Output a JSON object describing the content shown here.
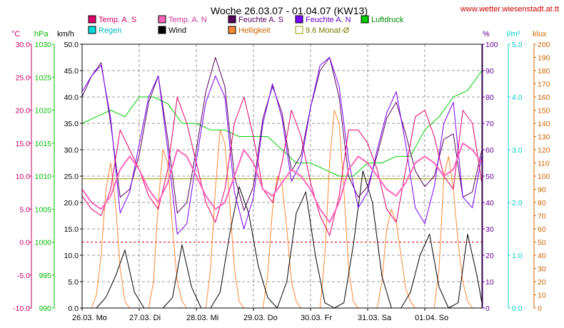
{
  "chart_data": {
    "type": "line",
    "title": "Woche 26.03.07 - 01.04.07 (KW13)",
    "site": "www.wetter.wiesenstadt.at.tt",
    "unit_labels": {
      "temp": "°C",
      "pressure": "hPa",
      "wind": "km/h",
      "humidity": "%",
      "rain": "l/m²",
      "light": "klux"
    },
    "axes": {
      "temp": {
        "range": [
          -10,
          30
        ],
        "ticks": [
          "-10.0",
          "-5.0",
          "0.0",
          "5.0",
          "10.0",
          "15.0",
          "20.0",
          "25.0",
          "30.0"
        ],
        "color": "#cc0066"
      },
      "pressure": {
        "range": [
          990,
          1030
        ],
        "ticks": [
          "990",
          "995",
          "1000",
          "1005",
          "1010",
          "1015",
          "1020",
          "1025",
          "1030"
        ],
        "color": "#00bb00"
      },
      "wind": {
        "range": [
          0,
          50
        ],
        "ticks": [
          "0.0",
          "5.0",
          "10.0",
          "15.0",
          "20.0",
          "25.0",
          "30.0",
          "35.0",
          "40.0",
          "45.0",
          "50.0"
        ],
        "color": "#000000"
      },
      "humidity": {
        "range": [
          0,
          100
        ],
        "ticks": [
          "0",
          "10",
          "20",
          "30",
          "40",
          "50",
          "60",
          "70",
          "80",
          "90",
          "100"
        ],
        "color": "#660099"
      },
      "rain": {
        "range": [
          0,
          5
        ],
        "ticks": [
          "0.0",
          "1.0",
          "2.0",
          "3.0",
          "4.0",
          "5.0"
        ],
        "color": "#00cccc"
      },
      "light": {
        "range": [
          0,
          200
        ],
        "ticks": [
          "0",
          "10",
          "20",
          "30",
          "40",
          "50",
          "60",
          "70",
          "80",
          "90",
          "100",
          "110",
          "120",
          "130",
          "140",
          "150",
          "160",
          "170",
          "180",
          "190",
          "200"
        ],
        "color": "#cc6600"
      }
    },
    "x_days": [
      "26.03. Mo",
      "27.03. Di",
      "28.03. Mi",
      "29.03. Do",
      "30.03. Fr",
      "31.03. Sa",
      "01.04. So"
    ],
    "x_unit": "hours since week start",
    "legend": [
      {
        "label": "Temp. A. S",
        "color": "#e0006a"
      },
      {
        "label": "Temp. A. N",
        "color": "#ff66bb"
      },
      {
        "label": "Feuchte A. S",
        "color": "#55005a"
      },
      {
        "label": "Feuchte A. N",
        "color": "#7700ff"
      },
      {
        "label": "Luftdruck",
        "color": "#00cc00"
      },
      {
        "label": "Regen",
        "color": "#00dddd"
      },
      {
        "label": "Wind",
        "color": "#000000"
      },
      {
        "label": "Helligkeit",
        "color": "#ff8833"
      },
      {
        "label": "9.6 Monat-Ø",
        "color": "#999900",
        "outline": true
      }
    ],
    "monthly_mean_temp": 9.6,
    "zero_line_temp": 0,
    "series": [
      {
        "name": "Temp. A. N",
        "axis": "temp",
        "color": "#ff66bb",
        "width": 2,
        "x": [
          0,
          4,
          8,
          12,
          16,
          20,
          24,
          28,
          32,
          36,
          40,
          44,
          48,
          52,
          56,
          60,
          64,
          68,
          72,
          76,
          80,
          84,
          88,
          92,
          96,
          100,
          104,
          108,
          112,
          116,
          120,
          124,
          128,
          132,
          136,
          140,
          144,
          148,
          152,
          156,
          160,
          164,
          168
        ],
        "y": [
          8,
          6,
          5,
          7,
          11,
          13,
          11,
          8,
          6,
          9,
          14,
          13,
          10,
          7,
          5,
          6,
          10,
          14,
          12,
          8,
          7,
          9,
          11,
          10,
          8,
          5,
          3,
          6,
          11,
          13,
          12,
          10,
          8,
          7,
          9,
          12,
          13,
          12,
          10,
          11,
          15,
          14,
          12
        ]
      },
      {
        "name": "Temp. A. S",
        "axis": "temp",
        "color": "#e0006a",
        "width": 1,
        "x": [
          0,
          4,
          8,
          12,
          16,
          20,
          24,
          28,
          32,
          36,
          40,
          44,
          48,
          52,
          56,
          60,
          64,
          68,
          72,
          76,
          80,
          84,
          88,
          92,
          96,
          100,
          104,
          108,
          112,
          116,
          120,
          124,
          128,
          132,
          136,
          140,
          144,
          148,
          152,
          156,
          160,
          164,
          168
        ],
        "y": [
          7,
          5,
          4,
          8,
          17,
          14,
          11,
          7,
          5,
          11,
          22,
          18,
          12,
          6,
          3,
          8,
          18,
          22,
          16,
          8,
          6,
          12,
          20,
          16,
          9,
          4,
          1,
          7,
          17,
          17,
          15,
          11,
          5,
          3,
          11,
          19,
          20,
          16,
          10,
          8,
          20,
          18,
          9
        ]
      },
      {
        "name": "Feuchte A. S",
        "axis": "humidity",
        "color": "#55005a",
        "width": 1,
        "x": [
          0,
          4,
          8,
          12,
          16,
          20,
          24,
          28,
          32,
          36,
          40,
          44,
          48,
          52,
          56,
          60,
          64,
          68,
          72,
          76,
          80,
          84,
          88,
          92,
          96,
          100,
          104,
          108,
          112,
          116,
          120,
          124,
          128,
          132,
          136,
          140,
          144,
          148,
          152,
          156,
          160,
          164,
          168
        ],
        "y": [
          80,
          88,
          93,
          70,
          42,
          45,
          58,
          78,
          88,
          64,
          36,
          40,
          60,
          82,
          95,
          84,
          50,
          37,
          46,
          72,
          84,
          74,
          52,
          58,
          76,
          90,
          95,
          80,
          50,
          42,
          46,
          58,
          72,
          78,
          66,
          52,
          46,
          50,
          64,
          66,
          42,
          44,
          60
        ]
      },
      {
        "name": "Feuchte A. N",
        "axis": "humidity",
        "color": "#7700ff",
        "width": 1,
        "x": [
          0,
          4,
          8,
          12,
          16,
          20,
          24,
          28,
          32,
          36,
          40,
          44,
          48,
          52,
          56,
          60,
          64,
          68,
          72,
          76,
          80,
          84,
          88,
          92,
          96,
          100,
          104,
          108,
          112,
          116,
          120,
          124,
          128,
          132,
          136,
          140,
          144,
          148,
          152,
          156,
          160,
          164,
          168
        ],
        "y": [
          82,
          88,
          92,
          72,
          36,
          44,
          62,
          80,
          88,
          60,
          28,
          32,
          56,
          78,
          88,
          80,
          44,
          30,
          42,
          70,
          85,
          72,
          48,
          55,
          76,
          92,
          95,
          84,
          56,
          38,
          44,
          60,
          74,
          82,
          62,
          38,
          32,
          46,
          70,
          78,
          42,
          38,
          58
        ]
      },
      {
        "name": "Luftdruck",
        "axis": "pressure",
        "color": "#00cc00",
        "width": 1,
        "x": [
          0,
          6,
          12,
          18,
          24,
          30,
          36,
          42,
          48,
          54,
          60,
          66,
          72,
          78,
          84,
          90,
          96,
          102,
          108,
          114,
          120,
          126,
          132,
          138,
          144,
          150,
          156,
          162,
          168
        ],
        "y": [
          1018,
          1019,
          1020,
          1019,
          1022,
          1022,
          1021,
          1018,
          1018,
          1017,
          1017,
          1016,
          1016,
          1016,
          1014,
          1012,
          1012,
          1011,
          1010,
          1010,
          1012,
          1012,
          1013,
          1013,
          1017,
          1019,
          1022,
          1023,
          1026
        ]
      },
      {
        "name": "Wind",
        "axis": "wind",
        "color": "#000000",
        "width": 1,
        "x": [
          0,
          6,
          10,
          14,
          18,
          22,
          26,
          30,
          34,
          38,
          42,
          46,
          50,
          54,
          58,
          62,
          66,
          70,
          74,
          78,
          82,
          86,
          90,
          94,
          98,
          102,
          106,
          110,
          114,
          118,
          122,
          126,
          130,
          134,
          138,
          142,
          146,
          150,
          154,
          158,
          162,
          166,
          168
        ],
        "y": [
          0,
          0,
          2,
          6,
          11,
          3,
          0,
          0,
          0,
          2,
          12,
          4,
          0,
          0,
          3,
          14,
          23,
          18,
          8,
          2,
          0,
          5,
          18,
          22,
          10,
          1,
          0,
          1,
          12,
          26,
          20,
          6,
          0,
          0,
          3,
          10,
          14,
          4,
          0,
          1,
          14,
          6,
          1
        ]
      },
      {
        "name": "Helligkeit",
        "axis": "light",
        "color": "#ff8833",
        "width": 1,
        "x": [
          0,
          4,
          6,
          8,
          10,
          12,
          14,
          16,
          18,
          20,
          24,
          28,
          30,
          32,
          34,
          36,
          38,
          40,
          42,
          44,
          48,
          52,
          54,
          56,
          58,
          60,
          62,
          64,
          66,
          68,
          72,
          76,
          78,
          80,
          82,
          84,
          86,
          88,
          90,
          92,
          96,
          100,
          102,
          104,
          106,
          108,
          110,
          112,
          114,
          116,
          120,
          124,
          126,
          128,
          130,
          132,
          134,
          136,
          138,
          140,
          144,
          148,
          150,
          152,
          154,
          156,
          158,
          160,
          162,
          164,
          168
        ],
        "y": [
          0,
          0,
          10,
          40,
          90,
          110,
          80,
          30,
          5,
          0,
          0,
          0,
          20,
          80,
          120,
          110,
          60,
          20,
          5,
          0,
          0,
          0,
          30,
          90,
          135,
          125,
          80,
          30,
          5,
          0,
          0,
          0,
          25,
          75,
          100,
          95,
          60,
          20,
          5,
          0,
          0,
          0,
          40,
          110,
          150,
          140,
          90,
          30,
          5,
          0,
          0,
          0,
          20,
          60,
          75,
          65,
          40,
          15,
          5,
          0,
          0,
          0,
          30,
          100,
          115,
          90,
          50,
          20,
          5,
          0,
          0
        ]
      }
    ]
  }
}
